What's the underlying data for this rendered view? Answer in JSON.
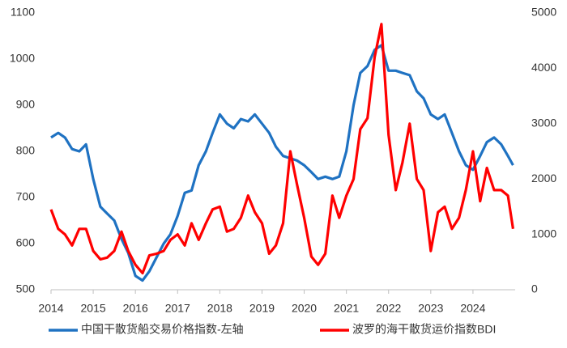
{
  "chart_data": {
    "type": "line",
    "x": [
      2014.0,
      2014.17,
      2014.33,
      2014.5,
      2014.67,
      2014.83,
      2015.0,
      2015.17,
      2015.33,
      2015.5,
      2015.67,
      2015.83,
      2016.0,
      2016.17,
      2016.33,
      2016.5,
      2016.67,
      2016.83,
      2017.0,
      2017.17,
      2017.33,
      2017.5,
      2017.67,
      2017.83,
      2018.0,
      2018.17,
      2018.33,
      2018.5,
      2018.67,
      2018.83,
      2019.0,
      2019.17,
      2019.33,
      2019.5,
      2019.67,
      2019.83,
      2020.0,
      2020.17,
      2020.33,
      2020.5,
      2020.67,
      2020.83,
      2021.0,
      2021.17,
      2021.33,
      2021.5,
      2021.67,
      2021.83,
      2022.0,
      2022.17,
      2022.33,
      2022.5,
      2022.67,
      2022.83,
      2023.0,
      2023.17,
      2023.33,
      2023.5,
      2023.67,
      2023.83,
      2024.0,
      2024.17,
      2024.33,
      2024.5,
      2024.67,
      2024.83,
      2024.95
    ],
    "series": [
      {
        "name": "中国干散货船交易价格指数-左轴",
        "color": "#1f72c2",
        "axis": "y",
        "values": [
          830,
          840,
          830,
          805,
          800,
          815,
          740,
          680,
          665,
          650,
          610,
          580,
          530,
          520,
          540,
          570,
          600,
          620,
          660,
          710,
          715,
          770,
          800,
          840,
          880,
          860,
          850,
          870,
          865,
          880,
          860,
          840,
          810,
          790,
          785,
          780,
          770,
          755,
          740,
          745,
          740,
          745,
          800,
          900,
          970,
          985,
          1020,
          1030,
          975,
          975,
          970,
          965,
          930,
          915,
          880,
          870,
          880,
          840,
          800,
          770,
          760,
          790,
          820,
          830,
          815,
          790,
          770
        ]
      },
      {
        "name": "波罗的海干散货运价指数BDI",
        "color": "#ff0000",
        "axis": "y2",
        "values": [
          1450,
          1100,
          1000,
          800,
          1100,
          1100,
          700,
          550,
          580,
          700,
          1050,
          700,
          450,
          300,
          620,
          650,
          700,
          900,
          1000,
          800,
          1200,
          900,
          1200,
          1450,
          1500,
          1050,
          1100,
          1300,
          1700,
          1400,
          1200,
          650,
          800,
          1200,
          2500,
          1900,
          1300,
          600,
          450,
          650,
          1700,
          1300,
          1700,
          2000,
          2900,
          3100,
          4200,
          4800,
          2800,
          1800,
          2300,
          3000,
          2000,
          1800,
          700,
          1400,
          1500,
          1100,
          1300,
          1800,
          2500,
          1600,
          2200,
          1800,
          1800,
          1700,
          1100
        ]
      }
    ],
    "xlim": [
      2014,
      2025
    ],
    "xticks": [
      2014,
      2015,
      2016,
      2017,
      2018,
      2019,
      2020,
      2021,
      2022,
      2023,
      2024
    ],
    "ylim": [
      500,
      1100
    ],
    "yticks": [
      500,
      600,
      700,
      800,
      900,
      1000,
      1100
    ],
    "y2lim": [
      0,
      5000
    ],
    "y2ticks": [
      0,
      1000,
      2000,
      3000,
      4000,
      5000
    ],
    "grid": false
  }
}
